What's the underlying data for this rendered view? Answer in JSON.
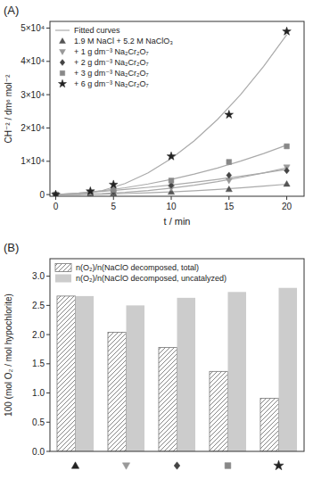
{
  "chart_data": [
    {
      "type": "scatter",
      "title": "(A)",
      "xlabel": "t / min",
      "ylabel": "CH⁻² / dm⁶ mol⁻²",
      "xlim": [
        -0.5,
        21.5
      ],
      "ylim": [
        -500,
        52000
      ],
      "xticks": [
        0,
        5,
        10,
        15,
        20
      ],
      "yticks": [
        0,
        {
          "value": 10000,
          "label": "1×10⁴"
        },
        {
          "value": 20000,
          "label": "2×10⁴"
        },
        {
          "value": 30000,
          "label": "3×10⁴"
        },
        {
          "value": 40000,
          "label": "4×10⁴"
        },
        {
          "value": 50000,
          "label": "5×10⁴"
        }
      ],
      "grid": false,
      "legend": "upper left",
      "series": [
        {
          "name": "Fitted curves",
          "type": "line",
          "color": "#aaaaaa",
          "x": [
            0,
            2,
            4,
            6,
            8,
            10,
            12,
            14,
            16,
            18,
            20
          ],
          "values": [
            0,
            41.2,
            142.3,
            303.5,
            524.7,
            805.9,
            1147.1,
            1548.3,
            2009.5,
            2530.8,
            3112.0
          ]
        },
        {
          "name": "Fitted curves",
          "type": "line",
          "color": "#aaaaaa",
          "x": [
            0,
            2,
            4,
            6,
            8,
            10,
            12,
            14,
            16,
            18,
            20
          ],
          "values": [
            0,
            56.3,
            279.4,
            669.1,
            1225.4,
            1948.5,
            2838.2,
            3894.6,
            5117.7,
            6507.4,
            8063.9
          ]
        },
        {
          "name": "Fitted curves",
          "type": "line",
          "color": "#aaaaaa",
          "x": [
            0,
            2,
            4,
            6,
            8,
            10,
            12,
            14,
            16,
            18,
            20
          ],
          "values": [
            0,
            436.9,
            945.1,
            1524.8,
            2175.9,
            2898.4,
            3692.3,
            4557.5,
            5494.2,
            6502.3,
            7581.8
          ]
        },
        {
          "name": "Fitted curves",
          "type": "line",
          "color": "#aaaaaa",
          "x": [
            0,
            2,
            4,
            6,
            8,
            10,
            12,
            14,
            16,
            18,
            20
          ],
          "values": [
            0,
            451.8,
            1133.2,
            2044.3,
            3185.1,
            4555.6,
            6155.7,
            7985.5,
            10044.9,
            12334.0,
            14852.8
          ]
        },
        {
          "name": "Fitted curves",
          "type": "line",
          "color": "#aaaaaa",
          "x": [
            0,
            2,
            4,
            6,
            8,
            10,
            12,
            14,
            16,
            18,
            20
          ],
          "values": [
            0,
            55.3,
            1165.7,
            3331.3,
            6552.1,
            10828.0,
            16159.0,
            22545.2,
            29986.5,
            38483.0,
            48034.6
          ]
        },
        {
          "name": "1.9 M NaCl + 5.2 M NaClO₃",
          "type": "scatter",
          "marker": "triangle-up",
          "color": "#555555",
          "x": [
            0,
            3,
            5,
            10,
            15,
            20
          ],
          "values": [
            0,
            150,
            350,
            800,
            1600,
            3200
          ]
        },
        {
          "name": "+ 1 g dm⁻³ Na₂Cr₂O₇",
          "type": "scatter",
          "marker": "triangle-down",
          "color": "#999999",
          "x": [
            0,
            3,
            5,
            10,
            15,
            20
          ],
          "values": [
            0,
            250,
            600,
            2000,
            4200,
            8200
          ]
        },
        {
          "name": "+ 2 g dm⁻³ Na₂Cr₂O₇",
          "type": "scatter",
          "marker": "diamond",
          "color": "#444444",
          "x": [
            0,
            3,
            5,
            10,
            15,
            20
          ],
          "values": [
            0,
            350,
            800,
            2800,
            5800,
            7200
          ]
        },
        {
          "name": "+ 3 g dm⁻³ Na₂Cr₂O₇",
          "type": "scatter",
          "marker": "square",
          "color": "#888888",
          "x": [
            0,
            3,
            5,
            10,
            15,
            20
          ],
          "values": [
            0,
            500,
            1400,
            4200,
            9800,
            14500
          ]
        },
        {
          "name": "+ 6 g dm⁻³ Na₂Cr₂O₇",
          "type": "scatter",
          "marker": "star",
          "color": "#222222",
          "x": [
            0,
            3,
            5,
            10,
            15,
            20
          ],
          "values": [
            0,
            1000,
            3000,
            11500,
            24000,
            49000
          ]
        }
      ]
    },
    {
      "type": "bar",
      "title": "(B)",
      "ylabel": "100 (mol O₂ / mol hypochlorite)",
      "ylim": [
        0,
        3.3
      ],
      "yticks": [
        {
          "value": 0,
          "label": "0.0"
        },
        0.5,
        {
          "value": 1,
          "label": "1.0"
        },
        1.5,
        {
          "value": 2,
          "label": "2.0"
        },
        2.5,
        {
          "value": 3,
          "label": "3.0"
        }
      ],
      "categories": [
        null,
        null,
        null,
        null,
        null
      ],
      "category_markers": [
        "triangle-up",
        "triangle-down",
        "diamond",
        "square",
        "star"
      ],
      "category_marker_colors": [
        "#222222",
        "#999999",
        "#444444",
        "#888888",
        "#222222"
      ],
      "grid": false,
      "legend": "upper left",
      "series": [
        {
          "name": "n(O₂)/n(NaClO decomposed, total)",
          "color": "#777777",
          "values": [
            2.66,
            2.04,
            1.78,
            1.37,
            0.91
          ]
        },
        {
          "name": "n(O₂)/n(NaClO decomposed, uncatalyzed)",
          "color": "#cccccc",
          "values": [
            2.66,
            2.5,
            2.63,
            2.73,
            2.8
          ]
        }
      ]
    }
  ]
}
